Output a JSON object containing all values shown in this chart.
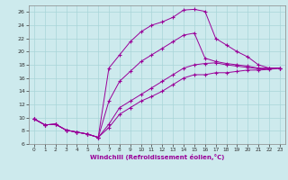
{
  "xlabel": "Windchill (Refroidissement éolien,°C)",
  "background_color": "#cdeaed",
  "line_color": "#990099",
  "grid_color": "#a8d5d8",
  "xlim": [
    -0.5,
    23.5
  ],
  "ylim": [
    6,
    27
  ],
  "yticks": [
    6,
    8,
    10,
    12,
    14,
    16,
    18,
    20,
    22,
    24,
    26
  ],
  "xticks": [
    0,
    1,
    2,
    3,
    4,
    5,
    6,
    7,
    8,
    9,
    10,
    11,
    12,
    13,
    14,
    15,
    16,
    17,
    18,
    19,
    20,
    21,
    22,
    23
  ],
  "lines": [
    {
      "x": [
        0,
        1,
        2,
        3,
        4,
        5,
        6,
        7,
        8,
        9,
        10,
        11,
        12,
        13,
        14,
        15,
        16,
        17,
        18,
        19,
        20,
        21,
        22,
        23
      ],
      "y": [
        9.8,
        8.9,
        9.0,
        8.1,
        7.8,
        7.5,
        7.0,
        8.5,
        10.5,
        11.5,
        12.5,
        13.2,
        14.0,
        15.0,
        16.0,
        16.5,
        16.5,
        16.8,
        16.8,
        17.0,
        17.2,
        17.2,
        17.3,
        17.5
      ]
    },
    {
      "x": [
        0,
        1,
        2,
        3,
        4,
        5,
        6,
        7,
        8,
        9,
        10,
        11,
        12,
        13,
        14,
        15,
        16,
        17,
        18,
        19,
        20,
        21,
        22,
        23
      ],
      "y": [
        9.8,
        8.9,
        9.0,
        8.1,
        7.8,
        7.5,
        7.0,
        9.0,
        11.5,
        12.5,
        13.5,
        14.5,
        15.5,
        16.5,
        17.5,
        18.0,
        18.2,
        18.3,
        18.0,
        17.8,
        17.6,
        17.4,
        17.4,
        17.5
      ]
    },
    {
      "x": [
        0,
        1,
        2,
        3,
        4,
        5,
        6,
        7,
        8,
        9,
        10,
        11,
        12,
        13,
        14,
        15,
        16,
        17,
        18,
        19,
        20,
        21,
        22,
        23
      ],
      "y": [
        9.8,
        8.9,
        9.0,
        8.1,
        7.8,
        7.5,
        7.0,
        12.5,
        15.5,
        17.0,
        18.5,
        19.5,
        20.5,
        21.5,
        22.5,
        22.8,
        19.0,
        18.5,
        18.2,
        18.0,
        17.8,
        17.5,
        17.5,
        17.5
      ]
    },
    {
      "x": [
        0,
        1,
        2,
        3,
        4,
        5,
        6,
        7,
        8,
        9,
        10,
        11,
        12,
        13,
        14,
        15,
        16,
        17,
        18,
        19,
        20,
        21,
        22,
        23
      ],
      "y": [
        9.8,
        8.9,
        9.0,
        8.1,
        7.8,
        7.5,
        7.0,
        17.5,
        19.5,
        21.5,
        23.0,
        24.0,
        24.5,
        25.2,
        26.3,
        26.4,
        26.1,
        22.0,
        21.0,
        20.0,
        19.2,
        18.0,
        17.5,
        17.5
      ]
    }
  ]
}
